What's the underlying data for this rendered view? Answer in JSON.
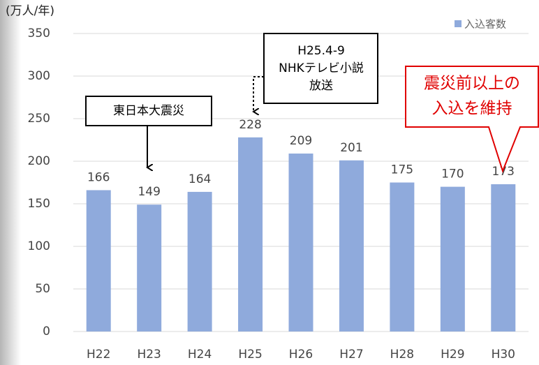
{
  "chart_data": {
    "type": "bar",
    "unit_label": "(万人/年)",
    "categories": [
      "H22",
      "H23",
      "H24",
      "H25",
      "H26",
      "H27",
      "H28",
      "H29",
      "H30"
    ],
    "series": [
      {
        "name": "入込客数",
        "color": "#8faadc",
        "values": [
          166,
          149,
          164,
          228,
          209,
          201,
          175,
          170,
          173
        ]
      }
    ],
    "ylim": [
      0,
      350
    ],
    "yticks": [
      0,
      50,
      100,
      150,
      200,
      250,
      300,
      350
    ],
    "grid": true,
    "legend": "top-right",
    "annotations": [
      {
        "lines": [
          "東日本大震災"
        ]
      },
      {
        "lines": [
          "H25.4-9",
          "NHKテレビ小説",
          "放送"
        ]
      },
      {
        "lines": [
          "震災前以上の",
          "入込を維持"
        ]
      }
    ]
  }
}
